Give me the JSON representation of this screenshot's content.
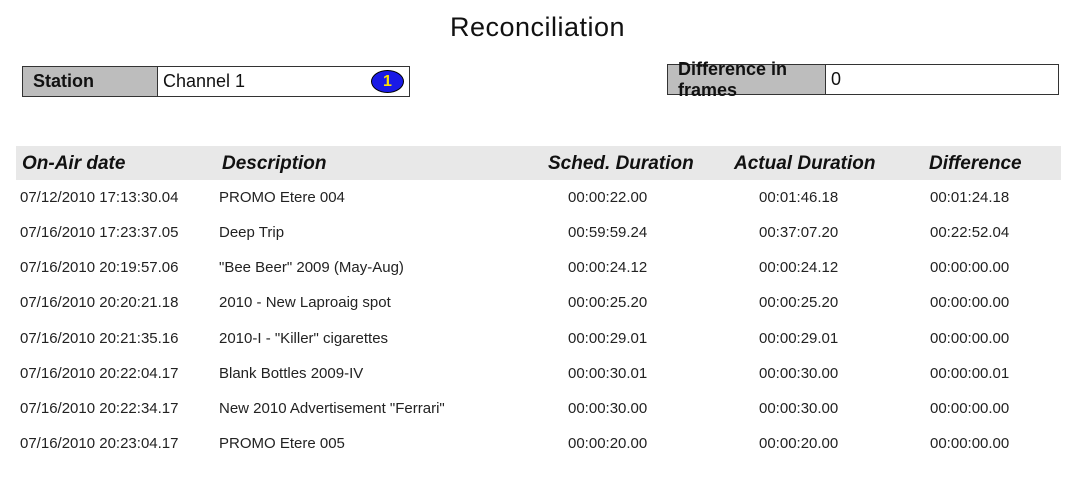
{
  "title": "Reconciliation",
  "station": {
    "label": "Station",
    "value": "Channel 1",
    "badge": "1"
  },
  "difference_in_frames": {
    "label": "Difference in frames",
    "value": "0"
  },
  "table": {
    "headers": [
      "On-Air date",
      "Description",
      "Sched. Duration",
      "Actual Duration",
      "Difference"
    ],
    "rows": [
      [
        "07/12/2010 17:13:30.04",
        "PROMO Etere 004",
        "00:00:22.00",
        "00:01:46.18",
        "00:01:24.18"
      ],
      [
        "07/16/2010 17:23:37.05",
        "Deep Trip",
        "00:59:59.24",
        "00:37:07.20",
        "00:22:52.04"
      ],
      [
        "07/16/2010 20:19:57.06",
        "\"Bee Beer\" 2009 (May-Aug)",
        "00:00:24.12",
        "00:00:24.12",
        "00:00:00.00"
      ],
      [
        "07/16/2010 20:20:21.18",
        "2010 - New Laproaig spot",
        "00:00:25.20",
        "00:00:25.20",
        "00:00:00.00"
      ],
      [
        "07/16/2010 20:21:35.16",
        "2010-I - \"Killer\" cigarettes",
        "00:00:29.01",
        "00:00:29.01",
        "00:00:00.00"
      ],
      [
        "07/16/2010 20:22:04.17",
        "Blank Bottles 2009-IV",
        "00:00:30.01",
        "00:00:30.00",
        "00:00:00.01"
      ],
      [
        "07/16/2010 20:22:34.17",
        "New 2010 Advertisement \"Ferrari\"",
        "00:00:30.00",
        "00:00:30.00",
        "00:00:00.00"
      ],
      [
        "07/16/2010 20:23:04.17",
        "PROMO Etere 005",
        "00:00:20.00",
        "00:00:20.00",
        "00:00:00.00"
      ]
    ]
  }
}
